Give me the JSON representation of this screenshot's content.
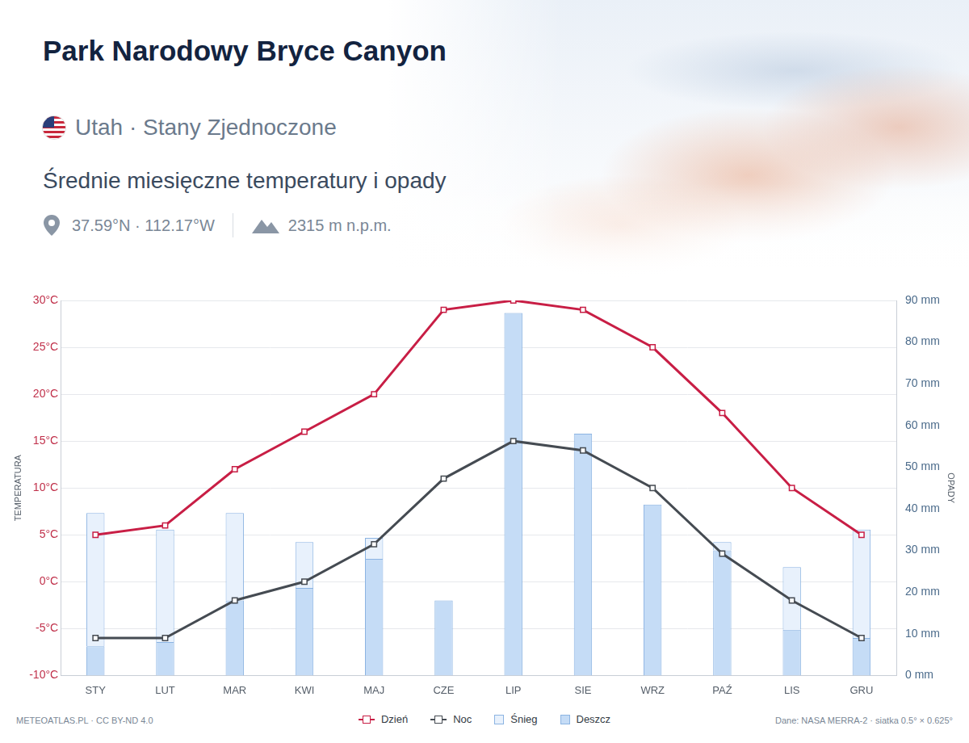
{
  "header": {
    "title": "Park Narodowy Bryce Canyon",
    "subtitle": "Utah · Stany Zjednoczone",
    "coordinates": "37.59°N · 112.17°W",
    "elevation": "2315 m n.p.m."
  },
  "footer": {
    "credit": "METEOATLAS.PL · CC BY-ND 4.0",
    "source": "Dane: NASA MERRA-2 · siatka 0.5° × 0.625°"
  },
  "chart_data": {
    "type": "bar",
    "title": "Średnie miesięczne temperatury i opady",
    "categories": [
      "STY",
      "LUT",
      "MAR",
      "KWI",
      "MAJ",
      "CZE",
      "LIP",
      "SIE",
      "WRZ",
      "PAŹ",
      "LIS",
      "GRU"
    ],
    "series": [
      {
        "name": "Dzień",
        "type": "line",
        "color": "#c81e45",
        "marker": "square",
        "values": [
          5,
          6,
          12,
          16,
          20,
          29,
          30,
          29,
          25,
          18,
          10,
          5
        ]
      },
      {
        "name": "Noc",
        "type": "line",
        "color": "#454b52",
        "marker": "square",
        "values": [
          -6,
          -6,
          -2,
          0,
          4,
          11,
          15,
          14,
          10,
          3,
          -2,
          -6
        ]
      },
      {
        "name": "Śnieg",
        "type": "bar",
        "axis": "y2",
        "color": "#e8f1fc",
        "values": [
          32,
          27,
          21,
          11,
          5,
          0,
          0,
          0,
          0,
          2,
          15,
          26
        ]
      },
      {
        "name": "Deszcz",
        "type": "bar",
        "axis": "y2",
        "color": "#c5dcf6",
        "values": [
          7,
          8,
          18,
          21,
          28,
          18,
          87,
          58,
          41,
          30,
          11,
          9
        ]
      }
    ],
    "stacked": true,
    "y_label": "TEMPERATURA",
    "y2_label": "OPADY",
    "ylim": [
      -10,
      30
    ],
    "yticks": [
      {
        "value": -10,
        "label": "-10°C"
      },
      {
        "value": -5,
        "label": "-5°C"
      },
      {
        "value": 0,
        "label": "0°C"
      },
      {
        "value": 5,
        "label": "5°C"
      },
      {
        "value": 10,
        "label": "10°C"
      },
      {
        "value": 15,
        "label": "15°C"
      },
      {
        "value": 20,
        "label": "20°C"
      },
      {
        "value": 25,
        "label": "25°C"
      },
      {
        "value": 30,
        "label": "30°C"
      }
    ],
    "y2lim": [
      0,
      90
    ],
    "y2ticks": [
      {
        "value": 0,
        "label": "0 mm"
      },
      {
        "value": 10,
        "label": "10 mm"
      },
      {
        "value": 20,
        "label": "20 mm"
      },
      {
        "value": 30,
        "label": "30 mm"
      },
      {
        "value": 40,
        "label": "40 mm"
      },
      {
        "value": 50,
        "label": "50 mm"
      },
      {
        "value": 60,
        "label": "60 mm"
      },
      {
        "value": 70,
        "label": "70 mm"
      },
      {
        "value": 80,
        "label": "80 mm"
      },
      {
        "value": 90,
        "label": "90 mm"
      }
    ],
    "grid": true,
    "legend": "bottom"
  }
}
